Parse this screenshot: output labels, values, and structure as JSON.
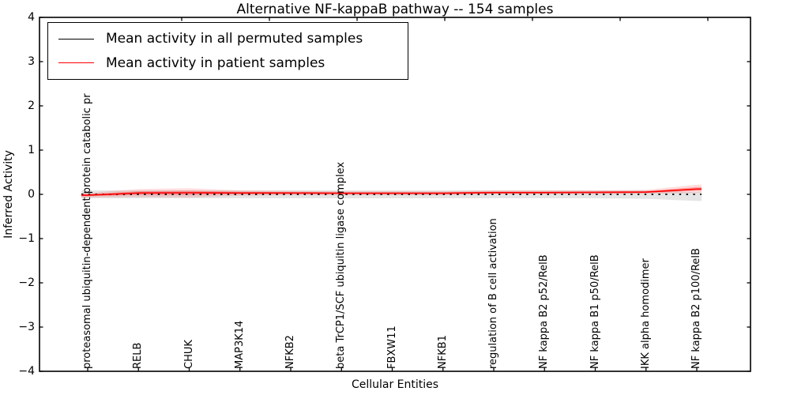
{
  "figure": {
    "title": "Alternative NF-kappaB pathway -- 154 samples",
    "xlabel": "Cellular Entities",
    "ylabel": "Inferred Activity",
    "legend": [
      {
        "label": "Mean activity in all permuted samples",
        "color": "#000000",
        "style": "dotted"
      },
      {
        "label": "Mean activity in patient samples",
        "color": "#ff0000",
        "style": "solid"
      }
    ]
  },
  "chart_data": {
    "type": "line",
    "title": "Alternative NF-kappaB pathway -- 154 samples",
    "xlabel": "Cellular Entities",
    "ylabel": "Inferred Activity",
    "ylim": [
      -4,
      4
    ],
    "ytick_labels": [
      "4",
      "3",
      "2",
      "1",
      "0",
      "−1",
      "−2",
      "−3",
      "−4"
    ],
    "ytick_values": [
      4,
      3,
      2,
      1,
      0,
      -1,
      -2,
      -3,
      -4
    ],
    "grid": false,
    "legend_position": "upper left",
    "categories": [
      "proteasomal ubiquitin-dependent protein catabolic pr",
      "RELB",
      "CHUK",
      "MAP3K14",
      "NFKB2",
      "beta TrCP1/SCF ubiquitin ligase complex",
      "FBXW11",
      "NFKB1",
      "regulation of B cell activation",
      "NF kappa B2 p52/RelB",
      "NF kappa B1 p50/RelB",
      "IKK alpha homodimer",
      "NF kappa B2 p100/RelB"
    ],
    "series": [
      {
        "name": "Mean activity in all permuted samples",
        "color": "#000000",
        "style": "dotted",
        "values": [
          0,
          0,
          0,
          0,
          0,
          0,
          0,
          0,
          0,
          0,
          0,
          0,
          0
        ]
      },
      {
        "name": "Mean activity in patient samples",
        "color": "#ff0000",
        "style": "solid",
        "values": [
          -0.02,
          0.03,
          0.035,
          0.03,
          0.03,
          0.025,
          0.025,
          0.025,
          0.04,
          0.04,
          0.045,
          0.05,
          0.12
        ]
      }
    ],
    "bands": [
      {
        "series": "Mean activity in all permuted samples",
        "color": "rgba(0,0,0,0.10)",
        "upper": [
          0.09,
          0.09,
          0.09,
          0.09,
          0.09,
          0.09,
          0.09,
          0.09,
          0.09,
          0.09,
          0.09,
          0.09,
          0.05
        ],
        "lower": [
          -0.09,
          -0.09,
          -0.09,
          -0.09,
          -0.09,
          -0.09,
          -0.09,
          -0.09,
          -0.09,
          -0.09,
          -0.09,
          -0.1,
          -0.15
        ]
      },
      {
        "series": "Mean activity in patient samples",
        "color": "rgba(255,0,0,0.13)",
        "upper": [
          0.03,
          0.12,
          0.14,
          0.09,
          0.08,
          0.07,
          0.07,
          0.07,
          0.09,
          0.09,
          0.09,
          0.1,
          0.22
        ],
        "lower": [
          -0.07,
          -0.06,
          -0.07,
          -0.03,
          -0.02,
          -0.02,
          -0.02,
          -0.02,
          0.0,
          0.0,
          0.0,
          0.01,
          0.03
        ]
      }
    ]
  }
}
